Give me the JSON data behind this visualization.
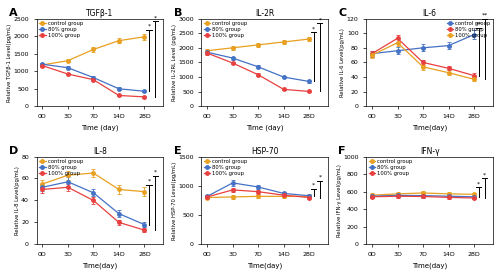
{
  "panels": [
    {
      "label": "A",
      "title": "TGFβ-1",
      "ylabel": "Relative TGFβ-1 Level(pg/mL)",
      "xlabel": "Time (day)",
      "xticklabels": [
        "0D",
        "3D",
        "7D",
        "14D",
        "28D"
      ],
      "ylim": [
        0,
        2500
      ],
      "yticks": [
        0,
        500,
        1000,
        1500,
        2000,
        2500
      ],
      "control": [
        1180,
        1300,
        1620,
        1870,
        1980
      ],
      "group80": [
        1200,
        1100,
        820,
        500,
        430
      ],
      "group100": [
        1160,
        920,
        760,
        310,
        270
      ],
      "control_err": [
        40,
        50,
        60,
        70,
        80
      ],
      "group80_err": [
        40,
        50,
        40,
        40,
        30
      ],
      "group100_err": [
        40,
        40,
        35,
        25,
        20
      ],
      "sig_labels": [
        "*",
        "*"
      ],
      "legend_loc": "upper left"
    },
    {
      "label": "B",
      "title": "IL-2R",
      "ylabel": "Relative IL-2RL Level (pg/mL)",
      "xlabel": "Time (day)",
      "xticklabels": [
        "0D",
        "3D",
        "7D",
        "14D",
        "28D"
      ],
      "ylim": [
        0,
        3000
      ],
      "yticks": [
        0,
        500,
        1000,
        1500,
        2000,
        2500,
        3000
      ],
      "control": [
        1900,
        2000,
        2100,
        2200,
        2300
      ],
      "group80": [
        1850,
        1650,
        1350,
        1000,
        850
      ],
      "group100": [
        1820,
        1480,
        1080,
        580,
        510
      ],
      "control_err": [
        50,
        60,
        60,
        70,
        80
      ],
      "group80_err": [
        50,
        50,
        50,
        40,
        40
      ],
      "group100_err": [
        50,
        50,
        50,
        30,
        30
      ],
      "sig_labels": [
        "*",
        "*"
      ],
      "legend_loc": "upper left"
    },
    {
      "label": "C",
      "title": "IL-6",
      "ylabel": "Relative IL-6 Level(pg/mL)",
      "xlabel": "Time(day)",
      "xticklabels": [
        "0D",
        "3D",
        "7D",
        "14D",
        "28D"
      ],
      "ylim": [
        0,
        120
      ],
      "yticks": [
        0,
        20,
        40,
        60,
        80,
        100,
        120
      ],
      "control": [
        72,
        76,
        80,
        83,
        98
      ],
      "group80": [
        72,
        93,
        60,
        52,
        42
      ],
      "group100": [
        70,
        87,
        54,
        46,
        37
      ],
      "control_err": [
        4,
        5,
        5,
        5,
        6
      ],
      "group80_err": [
        4,
        5,
        4,
        3,
        3
      ],
      "group100_err": [
        4,
        5,
        4,
        3,
        3
      ],
      "sig_labels": [
        "**",
        "**"
      ],
      "legend_loc": "upper right"
    },
    {
      "label": "D",
      "title": "IL-8",
      "ylabel": "Relative IL-8 Level(pg/mL)",
      "xlabel": "Time(day)",
      "xticklabels": [
        "0D",
        "3D",
        "7D",
        "14D",
        "28D"
      ],
      "ylim": [
        0,
        80
      ],
      "yticks": [
        0,
        20,
        40,
        60,
        80
      ],
      "control": [
        55,
        63,
        65,
        50,
        48
      ],
      "group80": [
        52,
        57,
        47,
        28,
        18
      ],
      "group100": [
        50,
        52,
        40,
        20,
        13
      ],
      "control_err": [
        4,
        4,
        4,
        4,
        4
      ],
      "group80_err": [
        3,
        4,
        3,
        3,
        2
      ],
      "group100_err": [
        3,
        3,
        3,
        2,
        2
      ],
      "sig_labels": [
        "*",
        "*"
      ],
      "legend_loc": "upper left"
    },
    {
      "label": "E",
      "title": "HSP-70",
      "ylabel": "Relative HSP-70 Level(pg/mL)",
      "xlabel": "Time(day)",
      "xticklabels": [
        "0D",
        "3D",
        "7D",
        "14D",
        "28D"
      ],
      "ylim": [
        0,
        1500
      ],
      "yticks": [
        0,
        500,
        1000,
        1500
      ],
      "control": [
        800,
        810,
        820,
        820,
        820
      ],
      "group80": [
        820,
        1050,
        980,
        870,
        830
      ],
      "group100": [
        810,
        930,
        900,
        840,
        800
      ],
      "control_err": [
        30,
        30,
        30,
        30,
        30
      ],
      "group80_err": [
        30,
        45,
        40,
        30,
        25
      ],
      "group100_err": [
        30,
        38,
        32,
        27,
        25
      ],
      "sig_labels": [
        "*",
        "*"
      ],
      "legend_loc": "upper left"
    },
    {
      "label": "F",
      "title": "IFN-γ",
      "ylabel": "Relative IFN-γ Level(pg/mL)",
      "xlabel": "Time(day)",
      "xticklabels": [
        "0D",
        "3D",
        "7D",
        "14D",
        "28D"
      ],
      "ylim": [
        0,
        1000
      ],
      "yticks": [
        0,
        200,
        400,
        600,
        800,
        1000
      ],
      "control": [
        560,
        575,
        585,
        575,
        570
      ],
      "group80": [
        548,
        558,
        555,
        548,
        542
      ],
      "group100": [
        542,
        548,
        545,
        535,
        528
      ],
      "control_err": [
        20,
        20,
        20,
        20,
        20
      ],
      "group80_err": [
        20,
        20,
        20,
        18,
        18
      ],
      "group100_err": [
        18,
        18,
        18,
        18,
        16
      ],
      "sig_labels": [
        "*",
        "*"
      ],
      "legend_loc": "upper left"
    }
  ],
  "colors": {
    "control": "#E8A020",
    "group80": "#4472C4",
    "group100": "#E84040"
  },
  "colors_C": {
    "control": "#4472C4",
    "group80": "#E84040",
    "group100": "#E8A020"
  },
  "legend_labels": [
    "control group",
    "80% group",
    "100% group"
  ],
  "figure_bg": "#ffffff"
}
